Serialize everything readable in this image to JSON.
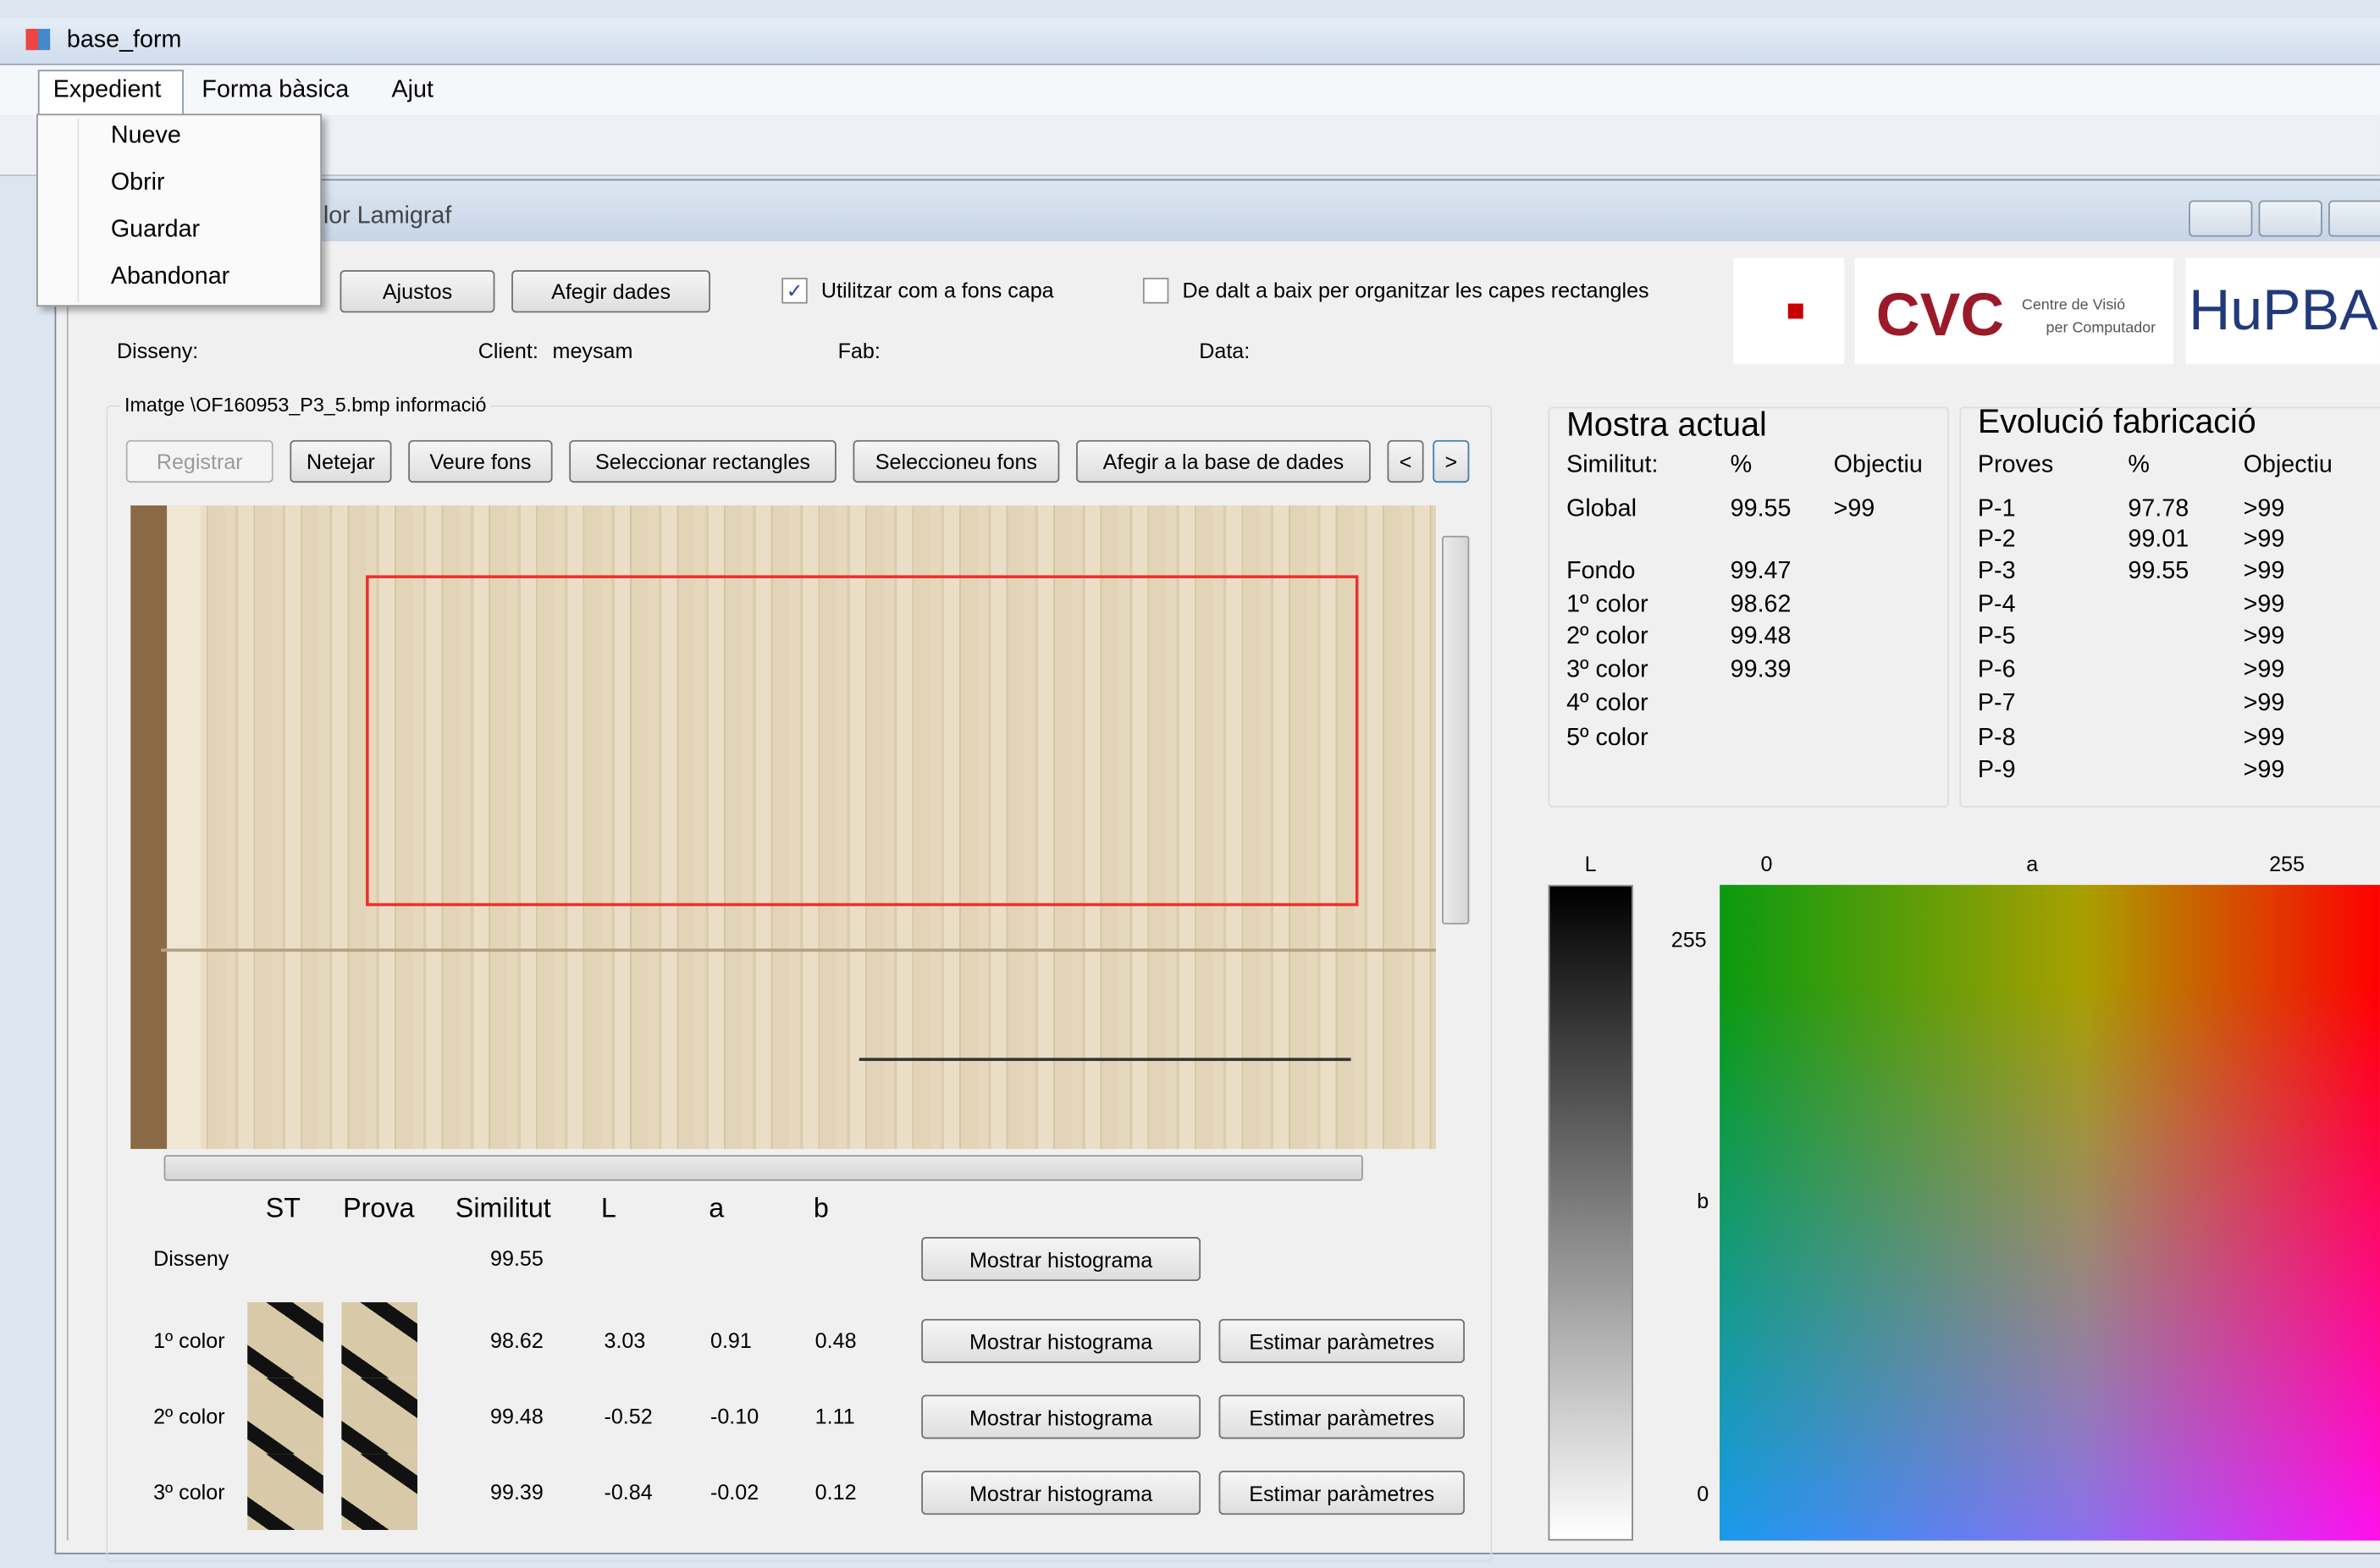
{
  "window": {
    "title": "base_form"
  },
  "menu": [
    "Expedient",
    "Forma bàsica",
    "Ajut"
  ],
  "dropdown": [
    "Nueve",
    "Obrir",
    "Guardar",
    "Abandonar"
  ],
  "child_window": {
    "title": "lor Lamigraf"
  },
  "toolbar": {
    "buttons": [
      "Ajustos",
      "Afegir dades"
    ],
    "checkboxes": [
      {
        "label": "Utilitzar com a fons capa",
        "checked": true
      },
      {
        "label": "De dalt a baix per organitzar les capes rectangles",
        "checked": false
      }
    ]
  },
  "logos": {
    "cvc": "CVC",
    "cvc_line1": "Centre de Visió",
    "cvc_line2": "per Computador",
    "hupba": "HuPBA"
  },
  "info": {
    "disseny": "Disseny:",
    "client_label": "Client:",
    "client": "meysam",
    "fab": "Fab:",
    "data": "Data:"
  },
  "image_group": {
    "title": "Imatge \\OF160953_P3_5.bmp informació",
    "buttons": [
      "Registrar",
      "Netejar",
      "Veure fons",
      "Seleccionar rectangles",
      "Seleccioneu fons",
      "Afegir a la base de dades",
      "<",
      ">"
    ]
  },
  "table": {
    "headers": [
      "ST",
      "Prova",
      "Similitut",
      "L",
      "a",
      "b"
    ],
    "rows": [
      {
        "label": "Disseny",
        "values": [
          "99.55"
        ],
        "buttons": [
          "Mostrar histograma"
        ]
      },
      {
        "label": "1º color",
        "values": [
          "98.62",
          "3.03",
          "0.91",
          "0.48"
        ],
        "buttons": [
          "Mostrar histograma",
          "Estimar paràmetres"
        ]
      },
      {
        "label": "2º color",
        "values": [
          "99.48",
          "-0.52",
          "-0.10",
          "1.11"
        ],
        "buttons": [
          "Mostrar histograma",
          "Estimar paràmetres"
        ]
      },
      {
        "label": "3º color",
        "values": [
          "99.39",
          "-0.84",
          "-0.02",
          "0.12"
        ],
        "buttons": [
          "Mostrar histograma",
          "Estimar paràmetres"
        ]
      }
    ]
  },
  "mostra_actual": {
    "title": "Mostra actual",
    "headers": [
      "Similitut:",
      "%",
      "Objectiu"
    ],
    "rows": [
      {
        "name": "Global",
        "pct": "99.55",
        "target": ">99"
      },
      {
        "name": "Fondo",
        "pct": "99.47"
      },
      {
        "name": "1º color",
        "pct": "98.62"
      },
      {
        "name": "2º color",
        "pct": "99.48"
      },
      {
        "name": "3º color",
        "pct": "99.39"
      },
      {
        "name": "4º color"
      },
      {
        "name": "5º color"
      }
    ]
  },
  "evolucio": {
    "title": "Evolució fabricació",
    "headers": [
      "Proves",
      "%",
      "Objectiu"
    ],
    "rows": [
      {
        "name": "P-1",
        "pct": "97.78",
        "target": ">99"
      },
      {
        "name": "P-2",
        "pct": "99.01",
        "target": ">99"
      },
      {
        "name": "P-3",
        "pct": "99.55",
        "target": ">99"
      },
      {
        "name": "P-4",
        "target": ">99"
      },
      {
        "name": "P-5",
        "target": ">99"
      },
      {
        "name": "P-6",
        "target": ">99"
      },
      {
        "name": "P-7",
        "target": ">99"
      },
      {
        "name": "P-8",
        "target": ">99"
      },
      {
        "name": "P-9",
        "target": ">99"
      }
    ]
  },
  "color_space": {
    "l_label": "L",
    "a_label": "a",
    "b_label": "b",
    "a_ticks": [
      "0",
      "255"
    ],
    "b_ticks": [
      "255",
      "0"
    ]
  }
}
